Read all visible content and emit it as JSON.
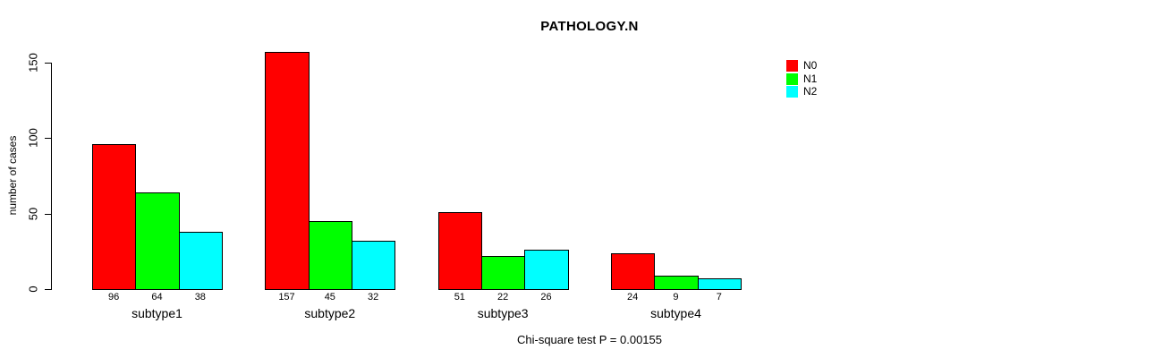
{
  "chart_data": {
    "type": "bar",
    "title": "PATHOLOGY.N",
    "ylabel": "number of cases",
    "xlabel": "",
    "categories": [
      "subtype1",
      "subtype2",
      "subtype3",
      "subtype4"
    ],
    "series": [
      {
        "name": "N0",
        "color": "#ff0000",
        "values": [
          96,
          157,
          51,
          24
        ]
      },
      {
        "name": "N1",
        "color": "#00ff00",
        "values": [
          64,
          45,
          22,
          9
        ]
      },
      {
        "name": "N2",
        "color": "#00ffff",
        "values": [
          38,
          32,
          26,
          7
        ]
      }
    ],
    "yticks": [
      0,
      50,
      100,
      150
    ],
    "ylim": [
      0,
      157
    ],
    "grid": false,
    "legend_position": "top-right",
    "show_bar_value_labels": true,
    "annotation": "Chi-square test P = 0.00155"
  }
}
